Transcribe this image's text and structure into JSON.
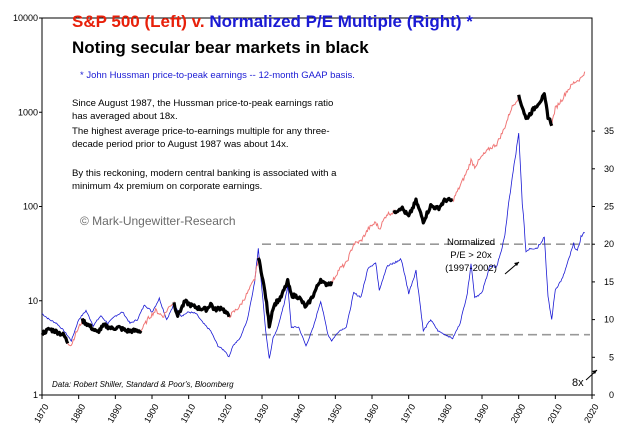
{
  "title": {
    "part1": "S&P 500 (Left) v. ",
    "part2": "Normalized P/E Multiple (Right) *",
    "line2": "Noting secular bear markets in black",
    "footnote": "* John Hussman price-to-peak earnings -- 12-month GAAP basis."
  },
  "notes": [
    "Since August 1987, the Hussman price-to-peak earnings ratio has averaged about 18x.",
    "The highest average price-to-earnings multiple for any three-decade period prior to August 1987 was about 14x.",
    "By this reckoning, modern central banking is associated with a minimum 4x premium on corporate earnings."
  ],
  "watermark": "© Mark-Ungewitter-Research",
  "source": "Data: Robert Shiller, Standard & Poor's, Bloomberg",
  "annotation": [
    "Normalized",
    "P/E > 20x",
    "(1997-2002)"
  ],
  "label_8x": "8x",
  "colors": {
    "sp500": "#f07878",
    "bear": "#000000",
    "pe": "#1a1ad4",
    "reference": "#999999",
    "title_red": "#e8200a",
    "title_blue": "#1a1ad4"
  },
  "chart_data": {
    "type": "line",
    "x_axis": {
      "range": [
        1870,
        2020
      ],
      "ticks": [
        "1870",
        "1880",
        "1890",
        "1900",
        "1910",
        "1920",
        "1930",
        "1940",
        "1950",
        "1960",
        "1970",
        "1980",
        "1990",
        "2000",
        "2010",
        "2020"
      ]
    },
    "y_left": {
      "scale": "log",
      "range": [
        1,
        10000
      ],
      "ticks": [
        "1",
        "10",
        "100",
        "1000",
        "10000"
      ]
    },
    "y_right": {
      "range": [
        0,
        50
      ],
      "ticks": [
        "0",
        "5",
        "10",
        "15",
        "20",
        "25",
        "30",
        "35"
      ]
    },
    "series": [
      {
        "axis": "left",
        "points": [
          [
            1870,
            4.5
          ],
          [
            1872,
            5.0
          ],
          [
            1874,
            4.7
          ],
          [
            1876,
            4.3
          ],
          [
            1877,
            3.6
          ],
          [
            1878,
            3.4
          ],
          [
            1879,
            4.3
          ],
          [
            1881,
            6.2
          ],
          [
            1883,
            5.4
          ],
          [
            1885,
            4.6
          ],
          [
            1887,
            5.5
          ],
          [
            1889,
            5.1
          ],
          [
            1891,
            5.2
          ],
          [
            1893,
            4.8
          ],
          [
            1895,
            4.8
          ],
          [
            1897,
            4.8
          ],
          [
            1899,
            6.5
          ],
          [
            1901,
            7.9
          ],
          [
            1903,
            6.8
          ],
          [
            1905,
            9.0
          ],
          [
            1906,
            9.5
          ],
          [
            1907,
            7.0
          ],
          [
            1909,
            9.8
          ],
          [
            1911,
            8.8
          ],
          [
            1913,
            8.3
          ],
          [
            1915,
            8.1
          ],
          [
            1916,
            9.4
          ],
          [
            1917,
            8.0
          ],
          [
            1919,
            8.5
          ],
          [
            1921,
            6.8
          ],
          [
            1922,
            7.4
          ],
          [
            1924,
            8.8
          ],
          [
            1926,
            12.0
          ],
          [
            1928,
            17.0
          ],
          [
            1929,
            28.5
          ],
          [
            1930,
            19.0
          ],
          [
            1931,
            11.0
          ],
          [
            1932,
            5.5
          ],
          [
            1933,
            8.5
          ],
          [
            1934,
            9.8
          ],
          [
            1935,
            10.5
          ],
          [
            1937,
            16.0
          ],
          [
            1938,
            11.5
          ],
          [
            1940,
            11.0
          ],
          [
            1942,
            8.5
          ],
          [
            1944,
            11.5
          ],
          [
            1946,
            17.0
          ],
          [
            1947,
            15.0
          ],
          [
            1949,
            15.5
          ],
          [
            1951,
            21.5
          ],
          [
            1953,
            25.0
          ],
          [
            1955,
            40.0
          ],
          [
            1957,
            43.0
          ],
          [
            1959,
            58.0
          ],
          [
            1961,
            68.0
          ],
          [
            1962,
            58.0
          ],
          [
            1964,
            83.0
          ],
          [
            1966,
            87.0
          ],
          [
            1968,
            98.0
          ],
          [
            1970,
            78.0
          ],
          [
            1972,
            115.0
          ],
          [
            1974,
            70.0
          ],
          [
            1976,
            102.0
          ],
          [
            1978,
            95.0
          ],
          [
            1980,
            118.0
          ],
          [
            1982,
            115.0
          ],
          [
            1984,
            165.0
          ],
          [
            1986,
            240.0
          ],
          [
            1987,
            310.0
          ],
          [
            1988,
            265.0
          ],
          [
            1990,
            340.0
          ],
          [
            1992,
            410.0
          ],
          [
            1994,
            460.0
          ],
          [
            1996,
            660.0
          ],
          [
            1998,
            1100.0
          ],
          [
            2000,
            1460.0
          ],
          [
            2001,
            1150.0
          ],
          [
            2002,
            850.0
          ],
          [
            2003,
            950.0
          ],
          [
            2005,
            1200.0
          ],
          [
            2007,
            1500.0
          ],
          [
            2008,
            900.0
          ],
          [
            2009,
            750.0
          ],
          [
            2010,
            1100.0
          ],
          [
            2012,
            1400.0
          ],
          [
            2013,
            1650.0
          ],
          [
            2015,
            2050.0
          ],
          [
            2017,
            2300.0
          ],
          [
            2018,
            2700.0
          ]
        ]
      },
      {
        "axis": "left",
        "segments": [
          [
            1870,
            1877
          ],
          [
            1881,
            1897
          ],
          [
            1906,
            1921
          ],
          [
            1929,
            1949
          ],
          [
            1966,
            1982
          ],
          [
            2000,
            2009
          ]
        ]
      },
      {
        "axis": "right",
        "points": [
          [
            1870,
            10.8
          ],
          [
            1872,
            10.0
          ],
          [
            1874,
            9.5
          ],
          [
            1876,
            8.5
          ],
          [
            1878,
            7.2
          ],
          [
            1880,
            10.0
          ],
          [
            1882,
            11.2
          ],
          [
            1884,
            9.2
          ],
          [
            1886,
            10.5
          ],
          [
            1888,
            9.5
          ],
          [
            1890,
            10.5
          ],
          [
            1892,
            11.0
          ],
          [
            1894,
            9.5
          ],
          [
            1896,
            10.0
          ],
          [
            1898,
            12.0
          ],
          [
            1900,
            11.0
          ],
          [
            1902,
            12.8
          ],
          [
            1904,
            10.0
          ],
          [
            1906,
            12.0
          ],
          [
            1908,
            10.5
          ],
          [
            1910,
            11.0
          ],
          [
            1912,
            10.8
          ],
          [
            1914,
            9.5
          ],
          [
            1916,
            8.5
          ],
          [
            1918,
            6.5
          ],
          [
            1920,
            5.8
          ],
          [
            1921,
            5.0
          ],
          [
            1922,
            6.5
          ],
          [
            1924,
            7.5
          ],
          [
            1926,
            10.0
          ],
          [
            1928,
            15.0
          ],
          [
            1929,
            19.5
          ],
          [
            1930,
            14.0
          ],
          [
            1931,
            8.5
          ],
          [
            1932,
            4.8
          ],
          [
            1933,
            7.5
          ],
          [
            1934,
            8.5
          ],
          [
            1936,
            12.0
          ],
          [
            1937,
            14.5
          ],
          [
            1938,
            9.0
          ],
          [
            1940,
            9.0
          ],
          [
            1942,
            6.5
          ],
          [
            1944,
            9.0
          ],
          [
            1946,
            12.5
          ],
          [
            1948,
            8.0
          ],
          [
            1949,
            7.2
          ],
          [
            1951,
            8.5
          ],
          [
            1953,
            9.0
          ],
          [
            1955,
            13.5
          ],
          [
            1957,
            13.0
          ],
          [
            1959,
            17.0
          ],
          [
            1961,
            17.5
          ],
          [
            1962,
            14.0
          ],
          [
            1964,
            17.0
          ],
          [
            1966,
            17.5
          ],
          [
            1968,
            18.0
          ],
          [
            1970,
            13.5
          ],
          [
            1972,
            16.5
          ],
          [
            1974,
            8.5
          ],
          [
            1976,
            10.0
          ],
          [
            1978,
            8.5
          ],
          [
            1980,
            8.0
          ],
          [
            1982,
            7.5
          ],
          [
            1984,
            9.5
          ],
          [
            1986,
            13.5
          ],
          [
            1987,
            17.5
          ],
          [
            1988,
            13.0
          ],
          [
            1990,
            13.5
          ],
          [
            1992,
            17.0
          ],
          [
            1994,
            17.0
          ],
          [
            1996,
            20.5
          ],
          [
            1998,
            28.0
          ],
          [
            2000,
            34.5
          ],
          [
            2001,
            25.5
          ],
          [
            2002,
            19.0
          ],
          [
            2003,
            19.5
          ],
          [
            2005,
            19.5
          ],
          [
            2007,
            21.0
          ],
          [
            2008,
            13.0
          ],
          [
            2009,
            10.0
          ],
          [
            2010,
            14.0
          ],
          [
            2012,
            15.5
          ],
          [
            2014,
            18.5
          ],
          [
            2015,
            20.0
          ],
          [
            2016,
            19.0
          ],
          [
            2017,
            21.0
          ],
          [
            2018,
            21.5
          ]
        ]
      }
    ],
    "reference_lines": [
      {
        "axis": "right",
        "value": 20,
        "style": "dashed",
        "from": 1930
      },
      {
        "axis": "right",
        "value": 8,
        "style": "dashed",
        "from": 1930
      }
    ]
  }
}
